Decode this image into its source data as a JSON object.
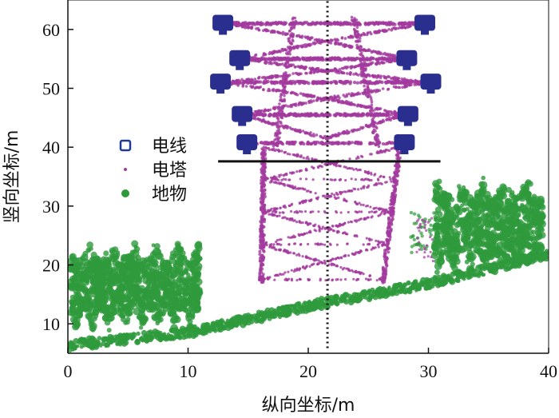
{
  "chart_data": {
    "type": "scatter",
    "xlabel": "纵向坐标/m",
    "ylabel": "竖向坐标/m",
    "xlim": [
      0,
      40
    ],
    "ylim": [
      5,
      65
    ],
    "xticks": [
      0,
      10,
      20,
      30,
      40
    ],
    "yticks": [
      10,
      20,
      30,
      40,
      50,
      60
    ],
    "grid": false,
    "legend": {
      "placement": "center-left",
      "entries": [
        {
          "name": "电线",
          "marker": "hollow-square",
          "color": "#1f3a93"
        },
        {
          "name": "电塔",
          "marker": "dot",
          "color": "#a23a9e"
        },
        {
          "name": "地物",
          "marker": "filled-circle",
          "color": "#2e9a3c"
        }
      ]
    },
    "series": [
      {
        "name": "电线",
        "color": "#2a2f8f",
        "insulator_points": [
          [
            12.9,
            61.0
          ],
          [
            29.7,
            61.0
          ],
          [
            14.3,
            55.0
          ],
          [
            28.2,
            55.0
          ],
          [
            12.7,
            51.0
          ],
          [
            30.2,
            51.0
          ],
          [
            14.5,
            45.5
          ],
          [
            28.3,
            45.5
          ],
          [
            14.9,
            40.7
          ],
          [
            28.0,
            40.7
          ]
        ]
      },
      {
        "name": "电塔",
        "color": "#a23a9e",
        "crossarms": [
          {
            "x1": 12.8,
            "x2": 30.1,
            "y": 61.0
          },
          {
            "x1": 14.0,
            "x2": 28.6,
            "y": 55.0
          },
          {
            "x1": 12.5,
            "x2": 30.6,
            "y": 51.0
          },
          {
            "x1": 14.0,
            "x2": 28.6,
            "y": 45.5
          }
        ],
        "body_outline": [
          [
            12.5,
            62.0
          ],
          [
            30.6,
            62.0
          ],
          [
            27.7,
            40.0
          ],
          [
            26.5,
            20.0
          ],
          [
            26.1,
            17.0
          ],
          [
            16.1,
            17.0
          ],
          [
            16.3,
            28.0
          ],
          [
            16.5,
            40.0
          ],
          [
            12.5,
            62.0
          ]
        ]
      },
      {
        "name": "地物",
        "color": "#2e9a3c",
        "ground_line": [
          [
            0.0,
            6.0
          ],
          [
            10.0,
            8.2
          ],
          [
            20.0,
            12.7
          ],
          [
            30.0,
            16.5
          ],
          [
            40.0,
            21.5
          ]
        ],
        "vegetation_clusters": [
          {
            "x1": 0.2,
            "x2": 11.0,
            "y1": 8.5,
            "y2": 25.0
          },
          {
            "x1": 30.5,
            "x2": 39.5,
            "y1": 18.0,
            "y2": 35.5
          }
        ]
      }
    ],
    "annotations": {
      "horizontal_line": {
        "x1": 12.5,
        "x2": 31.0,
        "y": 37.6
      },
      "vertical_dotted_line": {
        "x": 21.6,
        "y1": 5.5,
        "y2": 64.8
      }
    }
  }
}
